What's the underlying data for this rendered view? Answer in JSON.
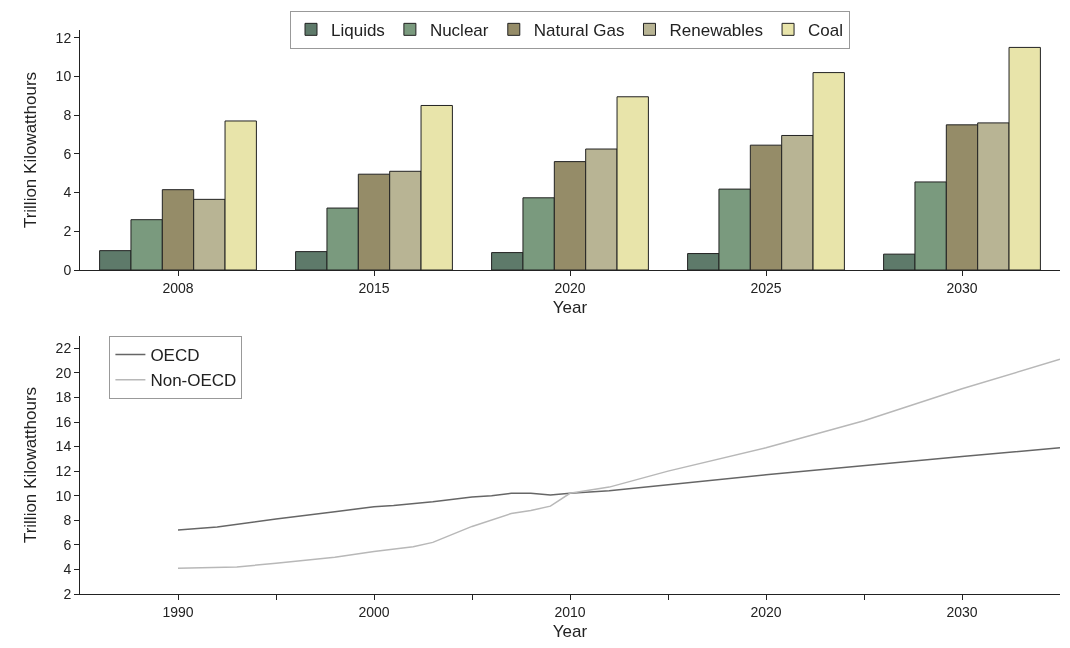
{
  "chart_data": [
    {
      "type": "bar",
      "xlabel": "Year",
      "ylabel": "Trillion Kilowatthours",
      "categories": [
        "2008",
        "2015",
        "2020",
        "2025",
        "2030"
      ],
      "series": [
        {
          "name": "Liquids",
          "color": "#5e7a6a",
          "values": [
            1.0,
            0.95,
            0.9,
            0.85,
            0.82
          ]
        },
        {
          "name": "Nuclear",
          "color": "#7a9a7e",
          "values": [
            2.6,
            3.2,
            3.73,
            4.18,
            4.55
          ]
        },
        {
          "name": "Natural Gas",
          "color": "#958c68",
          "values": [
            4.15,
            4.95,
            5.6,
            6.45,
            7.5
          ]
        },
        {
          "name": "Renewables",
          "color": "#b8b494",
          "values": [
            3.65,
            5.1,
            6.25,
            6.95,
            7.6
          ]
        },
        {
          "name": "Coal",
          "color": "#e8e4aa",
          "values": [
            7.7,
            8.5,
            8.95,
            10.2,
            11.5
          ]
        }
      ],
      "ylim": [
        0,
        12.4
      ],
      "yticks": [
        0,
        2,
        4,
        6,
        8,
        10,
        12
      ],
      "grid": false,
      "legend": "top"
    },
    {
      "type": "line",
      "xlabel": "Year",
      "ylabel": "Trillion Kilowatthours",
      "series": [
        {
          "name": "OECD",
          "color": "#666666",
          "x": [
            1990,
            1992,
            1995,
            1998,
            2000,
            2001,
            2003,
            2005,
            2006,
            2007,
            2008,
            2009,
            2010,
            2012,
            2020,
            2030,
            2035
          ],
          "values": [
            7.2,
            7.45,
            8.1,
            8.7,
            9.1,
            9.2,
            9.5,
            9.9,
            10.0,
            10.2,
            10.2,
            10.05,
            10.2,
            10.4,
            11.7,
            13.2,
            13.9
          ]
        },
        {
          "name": "Non-OECD",
          "color": "#b8b8b8",
          "x": [
            1990,
            1993,
            1995,
            1998,
            2000,
            2002,
            2003,
            2005,
            2007,
            2008,
            2009,
            2010,
            2012,
            2015,
            2020,
            2025,
            2030,
            2035
          ],
          "values": [
            4.1,
            4.2,
            4.5,
            5.0,
            5.45,
            5.85,
            6.2,
            7.5,
            8.55,
            8.8,
            9.15,
            10.2,
            10.7,
            12.0,
            13.9,
            16.1,
            18.7,
            21.1
          ]
        }
      ],
      "xlim": [
        1985,
        2035
      ],
      "xticks": [
        1990,
        {
          "value": 1995,
          "label": null
        },
        2000,
        {
          "value": 2005,
          "label": null
        },
        2010,
        {
          "value": 2015,
          "label": null
        },
        2020,
        {
          "value": 2025,
          "label": null
        },
        2030
      ],
      "ylim": [
        2,
        23
      ],
      "yticks": [
        2,
        4,
        6,
        8,
        10,
        12,
        14,
        16,
        18,
        20,
        22
      ],
      "grid": false,
      "legend": "top left",
      "marker": "none",
      "line_style": "solid"
    }
  ]
}
